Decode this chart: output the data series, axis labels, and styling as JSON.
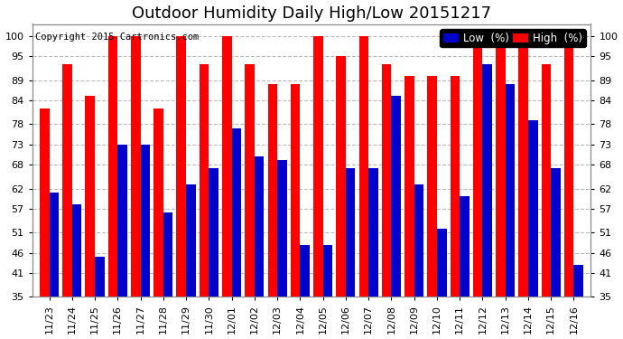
{
  "title": "Outdoor Humidity Daily High/Low 20151217",
  "copyright": "Copyright 2015 Cartronics.com",
  "legend_low_label": "Low  (%)",
  "legend_high_label": "High  (%)",
  "categories": [
    "11/23",
    "11/24",
    "11/25",
    "11/26",
    "11/27",
    "11/28",
    "11/29",
    "11/30",
    "12/01",
    "12/02",
    "12/03",
    "12/04",
    "12/05",
    "12/06",
    "12/07",
    "12/08",
    "12/09",
    "12/10",
    "12/11",
    "12/12",
    "12/13",
    "12/14",
    "12/15",
    "12/16"
  ],
  "high_values": [
    82,
    93,
    85,
    100,
    100,
    82,
    100,
    93,
    100,
    93,
    88,
    88,
    100,
    95,
    100,
    93,
    90,
    90,
    90,
    100,
    100,
    100,
    93,
    97
  ],
  "low_values": [
    61,
    58,
    45,
    73,
    73,
    56,
    63,
    67,
    77,
    70,
    69,
    48,
    48,
    67,
    67,
    85,
    63,
    52,
    60,
    93,
    88,
    79,
    67,
    43
  ],
  "high_color": "#ff0000",
  "low_color": "#0000cc",
  "background_color": "#ffffff",
  "plot_bg_color": "#ffffff",
  "grid_color": "#bbbbbb",
  "ylim_min": 35,
  "ylim_max": 103,
  "yticks": [
    35,
    41,
    46,
    51,
    57,
    62,
    68,
    73,
    78,
    84,
    89,
    95,
    100
  ],
  "bar_width": 0.42,
  "title_fontsize": 13,
  "tick_fontsize": 8,
  "legend_fontsize": 8.5,
  "copyright_fontsize": 7.5
}
